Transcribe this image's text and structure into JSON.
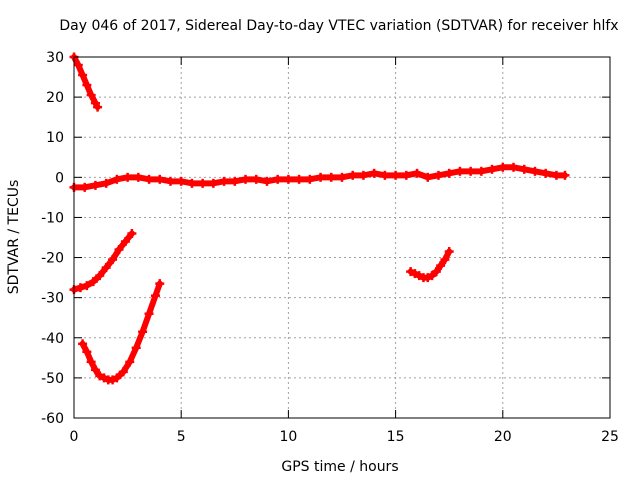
{
  "chart_data": {
    "type": "scatter",
    "title": "Day 046 of 2017, Sidereal Day-to-day VTEC variation (SDTVAR) for receiver hlfx",
    "xlabel": "GPS time / hours",
    "ylabel": "SDTVAR / TECUs",
    "xlim": [
      0,
      25
    ],
    "ylim": [
      -60,
      30
    ],
    "xticks": [
      0,
      5,
      10,
      15,
      20,
      25
    ],
    "yticks": [
      -60,
      -50,
      -40,
      -30,
      -20,
      -10,
      0,
      10,
      20,
      30
    ],
    "xtick_labels": [
      "0",
      "5",
      "10",
      "15",
      "20",
      "25"
    ],
    "ytick_labels": [
      "-60",
      "-50",
      "-40",
      "-30",
      "-20",
      "-10",
      "0",
      "10",
      "20",
      "30"
    ],
    "grid": true,
    "marker_color": "#ff0000",
    "series": [
      {
        "name": "arc-top-left",
        "x": [
          0.0,
          0.2,
          0.4,
          0.6,
          0.8,
          1.0,
          1.1
        ],
        "y": [
          30.0,
          28.0,
          25.5,
          23.0,
          20.5,
          18.5,
          17.5
        ]
      },
      {
        "name": "arc-main-zero",
        "x": [
          0.0,
          0.5,
          1.0,
          1.5,
          2.0,
          2.5,
          3.0,
          3.5,
          4.0,
          4.5,
          5.0,
          5.5,
          6.0,
          6.5,
          7.0,
          7.5,
          8.0,
          8.5,
          9.0,
          9.5,
          10.0,
          10.5,
          11.0,
          11.5,
          12.0,
          12.5,
          13.0,
          13.5,
          14.0,
          14.5,
          15.0,
          15.5,
          16.0,
          16.5,
          17.0,
          17.5,
          18.0,
          18.5,
          19.0,
          19.5,
          20.0,
          20.5,
          21.0,
          21.5,
          22.0,
          22.5,
          22.9
        ],
        "y": [
          -2.5,
          -2.5,
          -2.0,
          -1.5,
          -0.5,
          0.0,
          0.0,
          -0.5,
          -0.5,
          -1.0,
          -1.0,
          -1.5,
          -1.5,
          -1.5,
          -1.0,
          -1.0,
          -0.5,
          -0.5,
          -1.0,
          -0.5,
          -0.5,
          -0.5,
          -0.5,
          0.0,
          0.0,
          0.0,
          0.5,
          0.5,
          1.0,
          0.5,
          0.5,
          0.5,
          1.0,
          0.0,
          0.5,
          1.0,
          1.5,
          1.5,
          1.5,
          2.0,
          2.5,
          2.5,
          2.0,
          1.5,
          1.0,
          0.5,
          0.5
        ]
      },
      {
        "name": "arc-rising-left",
        "x": [
          0.0,
          0.3,
          0.6,
          0.9,
          1.2,
          1.5,
          1.8,
          2.1,
          2.4,
          2.7
        ],
        "y": [
          -28.0,
          -27.5,
          -27.0,
          -26.0,
          -24.5,
          -22.5,
          -20.5,
          -18.0,
          -16.0,
          -14.0
        ]
      },
      {
        "name": "arc-u-shape",
        "x": [
          0.4,
          0.6,
          0.8,
          1.0,
          1.2,
          1.4,
          1.6,
          1.8,
          2.0,
          2.3,
          2.6,
          2.9,
          3.2,
          3.5,
          3.8,
          4.0
        ],
        "y": [
          -41.5,
          -43.5,
          -46.0,
          -48.0,
          -49.5,
          -50.0,
          -50.5,
          -50.5,
          -50.0,
          -48.5,
          -46.0,
          -42.5,
          -38.5,
          -34.0,
          -29.5,
          -26.5
        ]
      },
      {
        "name": "arc-right-dip",
        "x": [
          15.7,
          15.9,
          16.1,
          16.3,
          16.5,
          16.7,
          16.9,
          17.1,
          17.3,
          17.5
        ],
        "y": [
          -23.5,
          -24.0,
          -24.5,
          -25.0,
          -25.0,
          -24.5,
          -23.5,
          -22.0,
          -20.5,
          -18.5
        ]
      }
    ]
  }
}
